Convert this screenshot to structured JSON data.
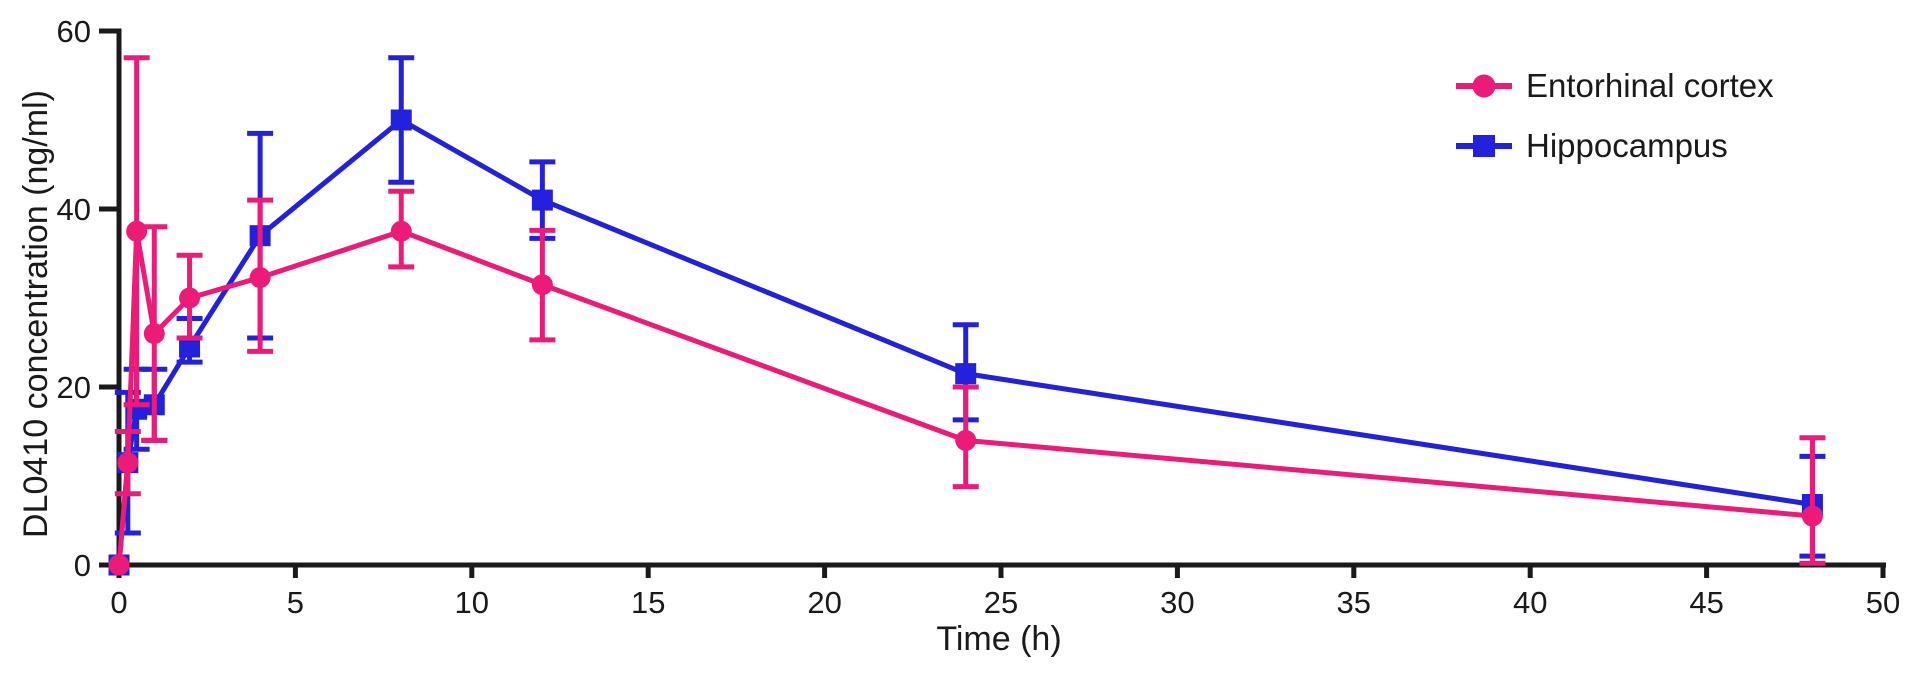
{
  "figure": {
    "background": "#ffffff",
    "text_color": "#1a1a1a"
  },
  "chart_data": {
    "type": "line",
    "title": "",
    "xlabel": "Time (h)",
    "ylabel": "DL0410 concentration (ng/ml)",
    "xlim": [
      0,
      50
    ],
    "ylim": [
      0,
      60
    ],
    "x_ticks": [
      0,
      5,
      10,
      15,
      20,
      25,
      30,
      35,
      40,
      45,
      50
    ],
    "y_ticks": [
      0,
      20,
      40,
      60
    ],
    "grid": false,
    "legend_position": "top-right",
    "axis_color": "#1a1a1a",
    "error_bars": "vertical with caps",
    "x": [
      0,
      0.25,
      0.5,
      1,
      2,
      4,
      8,
      12,
      24,
      48
    ],
    "series": [
      {
        "name": "Entorhinal cortex",
        "color": "#ED1B78",
        "marker": "circle",
        "values": [
          0,
          11.5,
          37.5,
          26,
          30,
          32.3,
          37.5,
          31.5,
          14,
          5.5
        ],
        "err_low": [
          0,
          8,
          18,
          14,
          25.5,
          24,
          33.5,
          25.3,
          8.8,
          0.2
        ],
        "err_high": [
          0,
          15,
          57,
          38,
          34.8,
          41,
          42,
          37.6,
          20,
          14.3
        ]
      },
      {
        "name": "Hippocampus",
        "color": "#2321DC",
        "marker": "square",
        "values": [
          0,
          11.5,
          17.5,
          18,
          24.5,
          37,
          50,
          41,
          21.5,
          6.8
        ],
        "err_low": [
          0,
          3.6,
          13,
          14,
          22.8,
          25.5,
          43,
          36.7,
          16.3,
          1
        ],
        "err_high": [
          0,
          19.4,
          22,
          22,
          27.7,
          48.5,
          57,
          45.3,
          27,
          12.2
        ]
      }
    ]
  }
}
